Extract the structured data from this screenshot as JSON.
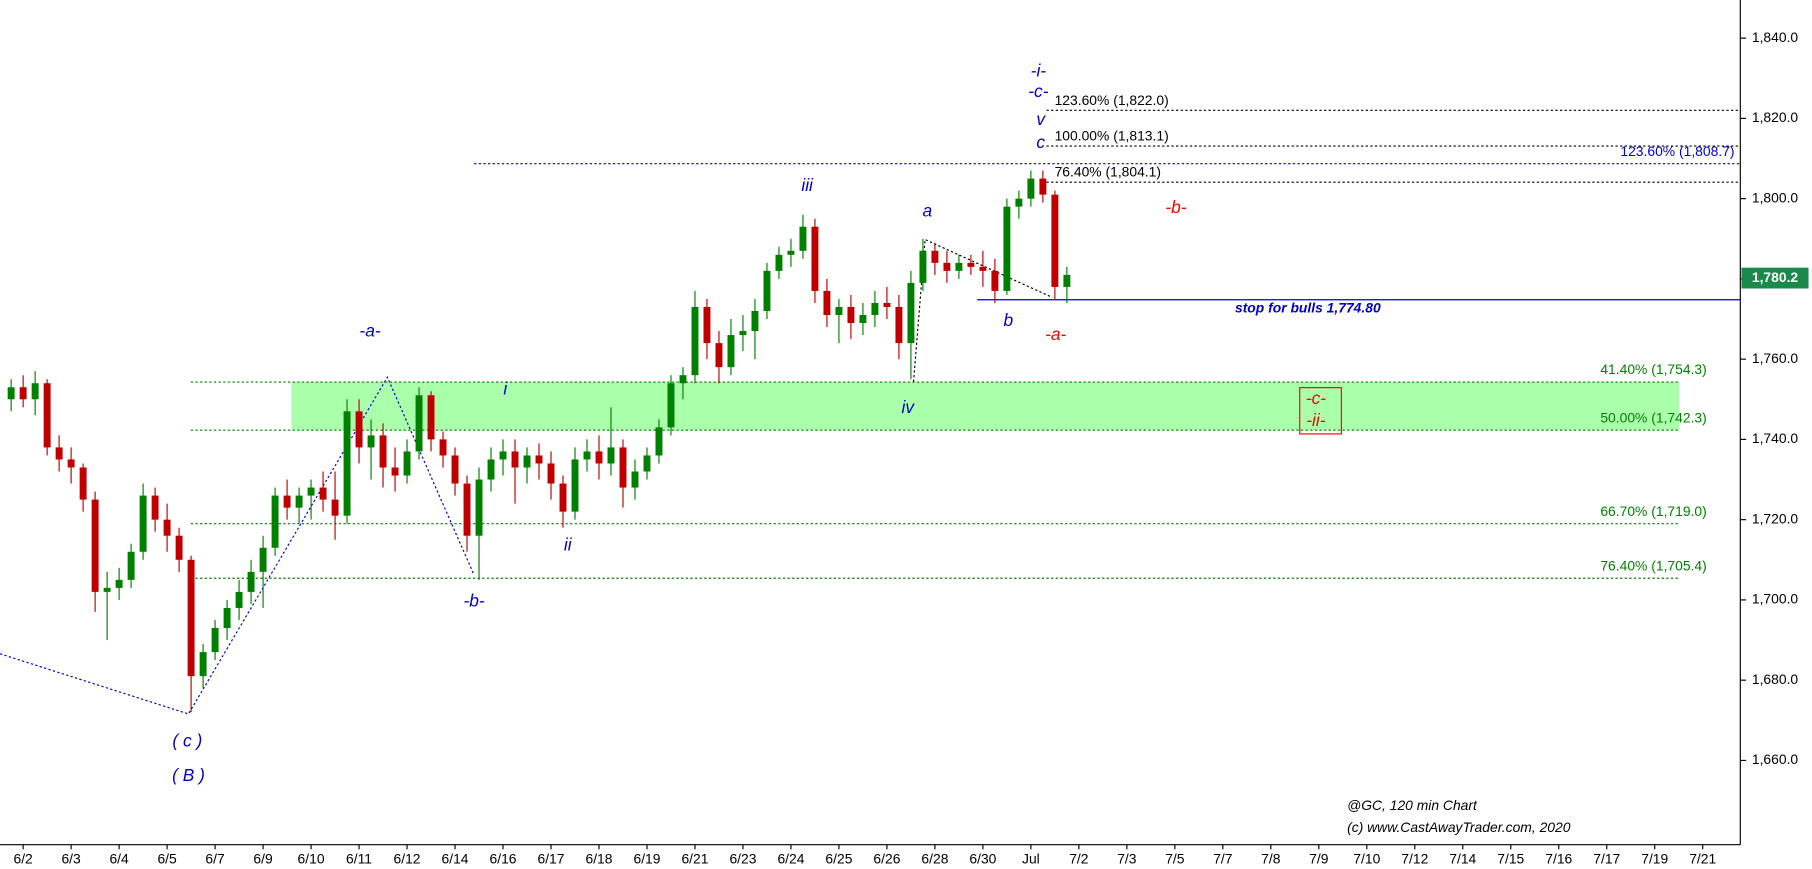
{
  "chart_data": {
    "type": "candlestick",
    "up_color": "#008000",
    "down_color": "#c00000",
    "x": [
      -0.25,
      0,
      0.25,
      0.5,
      0.75,
      1,
      1.25,
      1.5,
      1.75,
      2,
      2.25,
      2.5,
      2.75,
      3,
      3.25,
      3.5,
      3.75,
      4,
      4.25,
      4.5,
      4.75,
      5,
      5.25,
      5.5,
      5.75,
      6,
      6.25,
      6.5,
      6.75,
      7,
      7.25,
      7.5,
      7.75,
      8,
      8.25,
      8.5,
      8.75,
      9,
      9.25,
      9.5,
      9.75,
      10,
      10.25,
      10.5,
      10.75,
      11,
      11.25,
      11.5,
      11.75,
      12,
      12.25,
      12.5,
      12.75,
      13,
      13.25,
      13.5,
      13.75,
      14,
      14.25,
      14.5,
      14.75,
      15,
      15.25,
      15.5,
      15.75,
      16,
      16.25,
      16.5,
      16.75,
      17,
      17.25,
      17.5,
      17.75,
      18,
      18.25,
      18.5,
      18.75,
      19,
      19.25,
      19.5,
      19.75,
      20,
      20.25,
      20.5,
      20.75,
      21,
      21.25,
      21.5,
      21.75
    ],
    "open": [
      1750,
      1753,
      1750,
      1754,
      1738,
      1735,
      1733,
      1725,
      1702,
      1703,
      1705,
      1712,
      1726,
      1720,
      1716,
      1710,
      1681,
      1687,
      1693,
      1698,
      1702,
      1707,
      1713,
      1726,
      1723,
      1726,
      1728,
      1725,
      1721,
      1747,
      1738,
      1741,
      1733,
      1731,
      1737,
      1751,
      1740,
      1736,
      1729,
      1716,
      1730,
      1735,
      1737,
      1733,
      1736,
      1734,
      1729,
      1722,
      1735,
      1737,
      1734,
      1738,
      1728,
      1732,
      1736,
      1743,
      1754,
      1756,
      1773,
      1764,
      1758,
      1766,
      1767,
      1772,
      1782,
      1786,
      1787,
      1793,
      1777,
      1771,
      1773,
      1769,
      1771,
      1774,
      1773,
      1764,
      1779,
      1787,
      1784,
      1782,
      1784,
      1783,
      1782,
      1777,
      1798,
      1800,
      1805,
      1801,
      1778
    ],
    "high": [
      1755,
      1756,
      1757,
      1755,
      1741,
      1738,
      1734,
      1727,
      1707,
      1708,
      1714,
      1729,
      1728,
      1724,
      1718,
      1711,
      1689,
      1695,
      1700,
      1705,
      1710,
      1716,
      1728,
      1730,
      1728,
      1730,
      1732,
      1732,
      1750,
      1750,
      1745,
      1744,
      1738,
      1740,
      1753,
      1752,
      1742,
      1738,
      1731,
      1733,
      1738,
      1740,
      1740,
      1738,
      1739,
      1737,
      1731,
      1738,
      1740,
      1741,
      1748,
      1740,
      1735,
      1738,
      1745,
      1756,
      1758,
      1777,
      1775,
      1767,
      1770,
      1771,
      1775,
      1784,
      1788,
      1790,
      1796,
      1795,
      1780,
      1775,
      1776,
      1774,
      1777,
      1778,
      1776,
      1782,
      1790,
      1789,
      1787,
      1786,
      1786,
      1787,
      1785,
      1800,
      1802,
      1807,
      1807,
      1802,
      1783
    ],
    "low": [
      1747,
      1748,
      1746,
      1736,
      1732,
      1729,
      1722,
      1697,
      1690,
      1700,
      1703,
      1710,
      1717,
      1712,
      1707,
      1672,
      1678,
      1685,
      1690,
      1695,
      1699,
      1698,
      1711,
      1720,
      1719,
      1720,
      1722,
      1715,
      1719,
      1734,
      1730,
      1728,
      1727,
      1729,
      1735,
      1737,
      1733,
      1726,
      1712,
      1705,
      1727,
      1731,
      1724,
      1729,
      1730,
      1725,
      1718,
      1720,
      1732,
      1730,
      1731,
      1723,
      1725,
      1730,
      1734,
      1741,
      1750,
      1754,
      1760,
      1754,
      1756,
      1762,
      1760,
      1770,
      1780,
      1783,
      1785,
      1774,
      1768,
      1764,
      1765,
      1766,
      1768,
      1770,
      1760,
      1755,
      1777,
      1781,
      1779,
      1780,
      1781,
      1778,
      1774,
      1776,
      1795,
      1798,
      1799,
      1775,
      1774
    ],
    "close": [
      1753,
      1750,
      1754,
      1738,
      1735,
      1733,
      1725,
      1702,
      1703,
      1705,
      1712,
      1726,
      1720,
      1716,
      1710,
      1681,
      1687,
      1693,
      1698,
      1702,
      1707,
      1713,
      1726,
      1723,
      1726,
      1728,
      1725,
      1721,
      1747,
      1738,
      1741,
      1733,
      1731,
      1737,
      1751,
      1740,
      1736,
      1729,
      1716,
      1730,
      1735,
      1737,
      1733,
      1736,
      1734,
      1729,
      1722,
      1735,
      1737,
      1734,
      1738,
      1728,
      1732,
      1736,
      1743,
      1754,
      1756,
      1773,
      1764,
      1758,
      1766,
      1767,
      1772,
      1782,
      1786,
      1787,
      1793,
      1777,
      1771,
      1773,
      1769,
      1771,
      1774,
      1773,
      1764,
      1779,
      1787,
      1784,
      1782,
      1784,
      1783,
      1782,
      1777,
      1798,
      1800,
      1805,
      1801,
      1778,
      1781
    ],
    "xlim": [
      -0.482,
      35.783
    ],
    "ylim": [
      1639.0,
      1849.5
    ],
    "xticks": [
      {
        "value": 0,
        "label": "6/2"
      },
      {
        "value": 1,
        "label": "6/3"
      },
      {
        "value": 2,
        "label": "6/4"
      },
      {
        "value": 3,
        "label": "6/5"
      },
      {
        "value": 4,
        "label": "6/7"
      },
      {
        "value": 5,
        "label": "6/9"
      },
      {
        "value": 6,
        "label": "6/10"
      },
      {
        "value": 7,
        "label": "6/11"
      },
      {
        "value": 8,
        "label": "6/12"
      },
      {
        "value": 9,
        "label": "6/14"
      },
      {
        "value": 10,
        "label": "6/16"
      },
      {
        "value": 11,
        "label": "6/17"
      },
      {
        "value": 12,
        "label": "6/18"
      },
      {
        "value": 13,
        "label": "6/19"
      },
      {
        "value": 14,
        "label": "6/21"
      },
      {
        "value": 15,
        "label": "6/23"
      },
      {
        "value": 16,
        "label": "6/24"
      },
      {
        "value": 17,
        "label": "6/25"
      },
      {
        "value": 18,
        "label": "6/26"
      },
      {
        "value": 19,
        "label": "6/28"
      },
      {
        "value": 20,
        "label": "6/30"
      },
      {
        "value": 21,
        "label": "Jul"
      },
      {
        "value": 22,
        "label": "7/2"
      },
      {
        "value": 23,
        "label": "7/3"
      },
      {
        "value": 24,
        "label": "7/5"
      },
      {
        "value": 25,
        "label": "7/7"
      },
      {
        "value": 26,
        "label": "7/8"
      },
      {
        "value": 27,
        "label": "7/9"
      },
      {
        "value": 28,
        "label": "7/10"
      },
      {
        "value": 29,
        "label": "7/12"
      },
      {
        "value": 30,
        "label": "7/14"
      },
      {
        "value": 31,
        "label": "7/15"
      },
      {
        "value": 32,
        "label": "7/16"
      },
      {
        "value": 33,
        "label": "7/17"
      },
      {
        "value": 34,
        "label": "7/19"
      },
      {
        "value": 35,
        "label": "7/21"
      }
    ],
    "yticks": [
      {
        "value": 1660,
        "label": "1,660.0"
      },
      {
        "value": 1680,
        "label": "1,680.0"
      },
      {
        "value": 1700,
        "label": "1,700.0"
      },
      {
        "value": 1720,
        "label": "1,720.0"
      },
      {
        "value": 1740,
        "label": "1,740.0"
      },
      {
        "value": 1760,
        "label": "1,760.0"
      },
      {
        "value": 1780,
        "label": "1,780.0"
      },
      {
        "value": 1800,
        "label": "1,800.0"
      },
      {
        "value": 1820,
        "label": "1,820.0"
      },
      {
        "value": 1840,
        "label": "1,840.0"
      }
    ],
    "levels": [
      {
        "value": 1822.0,
        "label": "123.60% (1,822.0)",
        "color": "#000000"
      },
      {
        "value": 1813.1,
        "label": "100.00% (1,813.1)",
        "color": "#000000"
      },
      {
        "value": 1804.1,
        "label": "76.40% (1,804.1)",
        "color": "#000000"
      },
      {
        "value": 1808.7,
        "label": "123.60% (1,808.7)",
        "color": "#0000cc"
      },
      {
        "value": 1754.3,
        "label": "41.40% (1,754.3)",
        "color": "#008000"
      },
      {
        "value": 1742.3,
        "label": "50.00% (1,742.3)",
        "color": "#008000"
      },
      {
        "value": 1719.0,
        "label": "66.70% (1,719.0)",
        "color": "#008000"
      },
      {
        "value": 1705.4,
        "label": "76.40% (1,705.4)",
        "color": "#008000"
      }
    ],
    "zone_color": "#aaffaa",
    "stop": {
      "value": 1774.8,
      "label": "stop for bulls 1,774.80",
      "color": "#0000cc"
    },
    "last_price": {
      "value": 1780.2,
      "label": "1,780.2",
      "color": "#1a8a4a"
    },
    "annotations": [
      {
        "text": "-i-",
        "color": "#0000cc"
      },
      {
        "text": "-c-",
        "color": "#0000cc"
      },
      {
        "text": "v",
        "color": "#0000cc"
      },
      {
        "text": "c",
        "color": "#0000cc"
      },
      {
        "text": "iii",
        "color": "#0000cc"
      },
      {
        "text": "a",
        "color": "#0000cc"
      },
      {
        "text": "b",
        "color": "#0000cc"
      },
      {
        "text": "-a-",
        "color": "#ff0000"
      },
      {
        "text": "-b-",
        "color": "#ff0000"
      },
      {
        "text": "iv",
        "color": "#0000cc"
      },
      {
        "text": "i",
        "color": "#0000cc"
      },
      {
        "text": "ii",
        "color": "#0000cc"
      },
      {
        "text": "-a-",
        "color": "#0000cc"
      },
      {
        "text": "-b-",
        "color": "#0000cc"
      },
      {
        "text": "( c )",
        "color": "#0000cc"
      },
      {
        "text": "( B )",
        "color": "#0000cc"
      },
      {
        "text": "-c-",
        "color": "#ff0000"
      },
      {
        "text": "-ii-",
        "color": "#ff0000"
      }
    ],
    "footer": [
      "@GC, 120 min Chart",
      "(c) www.CastAwayTrader.com, 2020"
    ]
  }
}
